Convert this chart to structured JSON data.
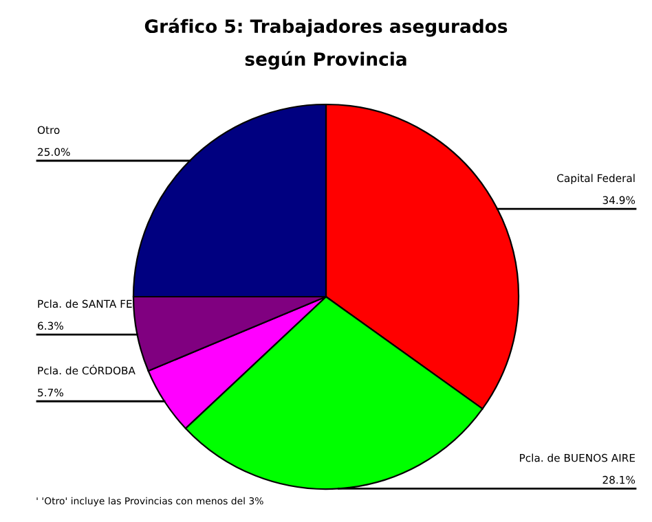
{
  "chart_data": {
    "type": "pie",
    "title": "Gráfico 5: Trabajadores asegurados\nsegún Provincia",
    "categories": [
      "Capital Federal",
      "Pcla. de BUENOS AIRE",
      "Pcla. de CÓRDOBA",
      "Pcla. de SANTA FE",
      "Otro"
    ],
    "values": [
      34.9,
      28.1,
      5.7,
      6.3,
      25.0
    ],
    "value_labels": [
      "34.9%",
      "28.1%",
      "5.7%",
      "6.3%",
      "25.0%"
    ],
    "colors": [
      "#ff0000",
      "#00ff00",
      "#ff00ff",
      "#800080",
      "#000080"
    ],
    "annotations": [
      "' 'Otro' incluye las Provincias con menos del 3%"
    ],
    "legend": false
  }
}
